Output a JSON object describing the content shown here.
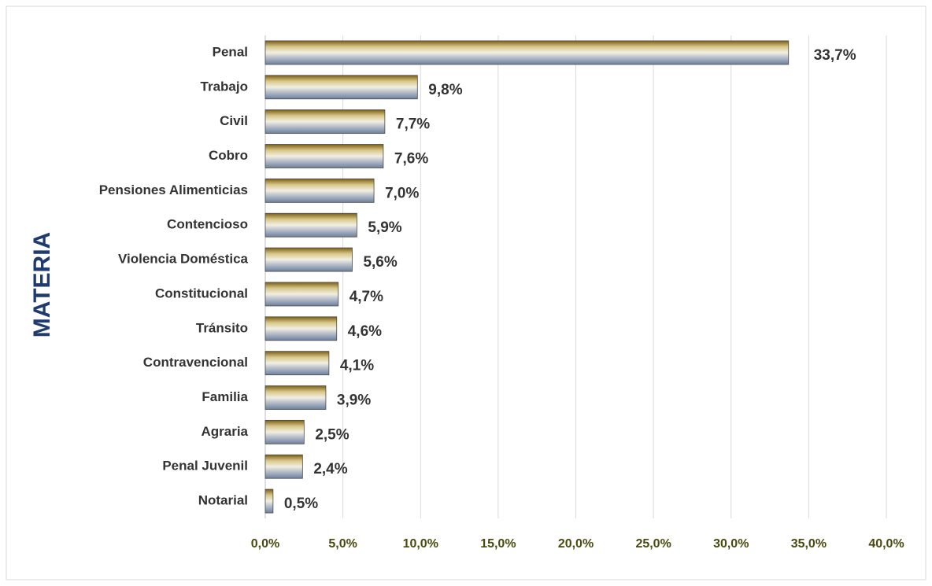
{
  "chart_data": {
    "type": "barh",
    "ylabel": "MATERIA",
    "categories": [
      "Penal",
      "Trabajo",
      "Civil",
      "Cobro",
      "Pensiones Alimenticias",
      "Contencioso",
      "Violencia Doméstica",
      "Constitucional",
      "Tránsito",
      "Contravencional",
      "Familia",
      "Agraria",
      "Penal Juvenil",
      "Notarial"
    ],
    "values": [
      33.7,
      9.8,
      7.7,
      7.6,
      7.0,
      5.9,
      5.6,
      4.7,
      4.6,
      4.1,
      3.9,
      2.5,
      2.4,
      0.5
    ],
    "value_labels": [
      "33,7%",
      "9,8%",
      "7,7%",
      "7,6%",
      "7,0%",
      "5,9%",
      "5,6%",
      "4,7%",
      "4,6%",
      "4,1%",
      "3,9%",
      "2,5%",
      "2,4%",
      "0,5%"
    ],
    "xlim": [
      0,
      40
    ],
    "xticks": [
      {
        "value": 0,
        "label": "0,0%"
      },
      {
        "value": 5,
        "label": "5,0%"
      },
      {
        "value": 10,
        "label": "10,0%"
      },
      {
        "value": 15,
        "label": "15,0%"
      },
      {
        "value": 20,
        "label": "20,0%"
      },
      {
        "value": 25,
        "label": "25,0%"
      },
      {
        "value": 30,
        "label": "30,0%"
      },
      {
        "value": 35,
        "label": "35,0%"
      },
      {
        "value": 40,
        "label": "40,0%"
      }
    ],
    "grid": true
  }
}
